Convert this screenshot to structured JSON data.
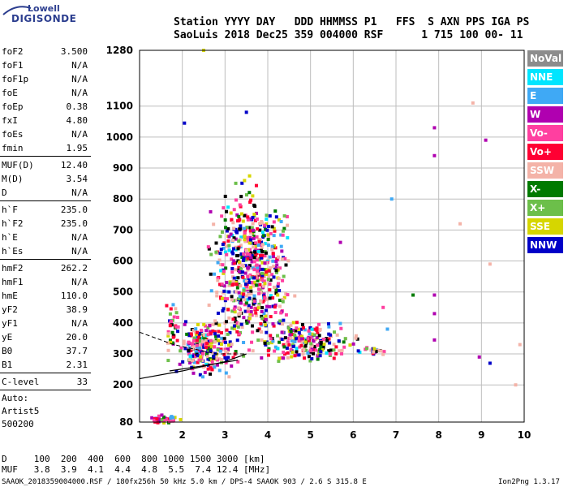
{
  "logo": {
    "line1": "Lowell",
    "line2": "DIGISONDE"
  },
  "header": {
    "labels": "Station YYYY DAY   DDD HHMMSS P1   FFS  S AXN PPS IGA PS",
    "values": "SaoLuis 2018 Dec25 359 004000 RSF      1 715 100 00- 11"
  },
  "params": [
    {
      "name": "foF2",
      "value": "3.500"
    },
    {
      "name": "foF1",
      "value": "N/A"
    },
    {
      "name": "foF1p",
      "value": "N/A"
    },
    {
      "name": "foE",
      "value": "N/A"
    },
    {
      "name": "foEp",
      "value": "0.38"
    },
    {
      "name": "fxI",
      "value": "4.80"
    },
    {
      "name": "foEs",
      "value": "N/A"
    },
    {
      "name": "fmin",
      "value": "1.95",
      "sep": true
    },
    {
      "name": "MUF(D)",
      "value": "12.40"
    },
    {
      "name": "M(D)",
      "value": "3.54"
    },
    {
      "name": "D",
      "value": "N/A",
      "sep": true
    },
    {
      "name": "h`F",
      "value": "235.0"
    },
    {
      "name": "h`F2",
      "value": "235.0"
    },
    {
      "name": "h`E",
      "value": "N/A"
    },
    {
      "name": "h`Es",
      "value": "N/A",
      "sep": true
    },
    {
      "name": "hmF2",
      "value": "262.2"
    },
    {
      "name": "hmF1",
      "value": "N/A"
    },
    {
      "name": "hmE",
      "value": "110.0"
    },
    {
      "name": "yF2",
      "value": "38.9"
    },
    {
      "name": "yF1",
      "value": "N/A"
    },
    {
      "name": "yE",
      "value": "20.0"
    },
    {
      "name": "B0",
      "value": "37.7"
    },
    {
      "name": "B1",
      "value": "2.31",
      "sep": true
    },
    {
      "name": "C-level",
      "value": "33",
      "sep": true
    }
  ],
  "auto_block": {
    "line1": "Auto:",
    "line2": "Artist5",
    "line3": "500200"
  },
  "legend": [
    {
      "label": "NoVal",
      "color": "#8c8c8c"
    },
    {
      "label": "NNE",
      "color": "#00e5ff"
    },
    {
      "label": "E",
      "color": "#3fa9f5"
    },
    {
      "label": "W",
      "color": "#b000b0"
    },
    {
      "label": "Vo-",
      "color": "#ff3fa0"
    },
    {
      "label": "Vo+",
      "color": "#ff0033"
    },
    {
      "label": "SSW",
      "color": "#f4b3a8"
    },
    {
      "label": "X-",
      "color": "#007a00"
    },
    {
      "label": "X+",
      "color": "#6cbf4a"
    },
    {
      "label": "SSE",
      "color": "#d6d600"
    },
    {
      "label": "NNW",
      "color": "#0000c8"
    }
  ],
  "distance_table": {
    "row1": "D     100  200  400  600  800 1000 1500 3000 [km]",
    "row2": "MUF   3.8  3.9  4.1  4.4  4.8  5.5  7.4 12.4 [MHz]"
  },
  "footer": {
    "left": "SAAOK_2018359004000.RSF / 180fx256h 50 kHz 5.0 km / DPS-4 SAAOK 903 / 2.6 S 315.8 E",
    "right": "Ion2Png 1.3.17"
  },
  "chart_data": {
    "type": "scatter",
    "xlim": [
      1,
      10
    ],
    "ylim": [
      80,
      1280
    ],
    "x_ticks": [
      1,
      2,
      3,
      4,
      5,
      6,
      7,
      8,
      9,
      10
    ],
    "y_ticks": [
      80,
      200,
      300,
      400,
      500,
      600,
      700,
      800,
      900,
      1000,
      1100,
      1280
    ],
    "xlabel": "",
    "ylabel": "",
    "grid": true,
    "clusters": [
      {
        "x": [
          1.5,
          3.5
        ],
        "y": [
          230,
          420
        ],
        "n": 260
      },
      {
        "x": [
          2.4,
          4.8
        ],
        "y": [
          300,
          800
        ],
        "n": 520
      },
      {
        "x": [
          3.5,
          6.3
        ],
        "y": [
          270,
          420
        ],
        "n": 220
      },
      {
        "x": [
          2.3,
          4.6
        ],
        "y": [
          500,
          900
        ],
        "n": 120
      },
      {
        "x": [
          1.0,
          2.0
        ],
        "y": [
          82,
          110
        ],
        "n": 40
      },
      {
        "x": [
          1.5,
          2.0
        ],
        "y": [
          300,
          470
        ],
        "n": 30
      },
      {
        "x": [
          6.0,
          6.9
        ],
        "y": [
          300,
          330
        ],
        "n": 25
      }
    ],
    "isolated_points": [
      {
        "x": 7.9,
        "y": 1030,
        "color": "#b000b0"
      },
      {
        "x": 7.9,
        "y": 940,
        "color": "#b000b0"
      },
      {
        "x": 7.9,
        "y": 490,
        "color": "#b000b0"
      },
      {
        "x": 7.9,
        "y": 430,
        "color": "#b000b0"
      },
      {
        "x": 7.9,
        "y": 345,
        "color": "#b000b0"
      },
      {
        "x": 9.1,
        "y": 990,
        "color": "#b000b0"
      },
      {
        "x": 9.2,
        "y": 270,
        "color": "#0000c8"
      },
      {
        "x": 8.95,
        "y": 290,
        "color": "#b000b0"
      },
      {
        "x": 6.8,
        "y": 380,
        "color": "#3fa9f5"
      },
      {
        "x": 6.7,
        "y": 450,
        "color": "#ff3fa0"
      },
      {
        "x": 8.8,
        "y": 1110,
        "color": "#f4b3a8"
      },
      {
        "x": 8.5,
        "y": 720,
        "color": "#f4b3a8"
      },
      {
        "x": 9.2,
        "y": 590,
        "color": "#f4b3a8"
      },
      {
        "x": 9.9,
        "y": 330,
        "color": "#f4b3a8"
      },
      {
        "x": 9.8,
        "y": 200,
        "color": "#f4b3a8"
      },
      {
        "x": 3.5,
        "y": 1080,
        "color": "#0000c8"
      },
      {
        "x": 2.05,
        "y": 1045,
        "color": "#0000c8"
      },
      {
        "x": 5.7,
        "y": 660,
        "color": "#b000b0"
      },
      {
        "x": 7.4,
        "y": 490,
        "color": "#007a00"
      },
      {
        "x": 6.9,
        "y": 800,
        "color": "#3fa9f5"
      },
      {
        "x": 2.5,
        "y": 1280,
        "color": "#d6d600"
      }
    ],
    "trace_solid": {
      "x": [
        1,
        2,
        3,
        3.5
      ],
      "y": [
        220,
        245,
        275,
        300
      ]
    },
    "trace_solid2": {
      "x": [
        1.7,
        2.5,
        3.3
      ],
      "y": [
        245,
        262,
        280
      ]
    },
    "trace_dashed": {
      "x": [
        1,
        1.8,
        2.8,
        3.5
      ],
      "y": [
        370,
        330,
        300,
        300
      ]
    }
  }
}
